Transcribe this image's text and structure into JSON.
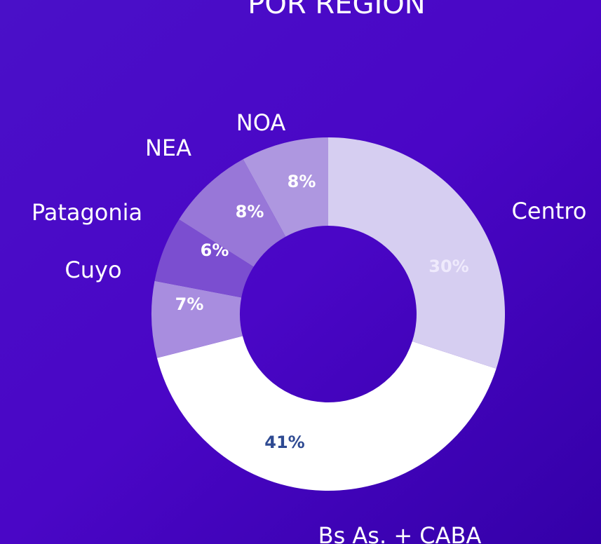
{
  "chart_data": {
    "type": "donut",
    "title": "POR REGION",
    "categories": [
      "Centro",
      "Bs As. + CABA",
      "Cuyo",
      "Patagonia",
      "NEA",
      "NOA"
    ],
    "values": [
      30,
      41,
      7,
      6,
      8,
      8
    ],
    "value_labels": [
      "30%",
      "41%",
      "7%",
      "6%",
      "8%",
      "8%"
    ],
    "colors": [
      "#d6cef1",
      "#ffffff",
      "#a88ddf",
      "#7b4ed0",
      "#9877d8",
      "#ae97e0"
    ],
    "value_label_colors": [
      "#efeafc",
      "#2e4a92",
      "#ffffff",
      "#ffffff",
      "#ffffff",
      "#ffffff"
    ]
  }
}
